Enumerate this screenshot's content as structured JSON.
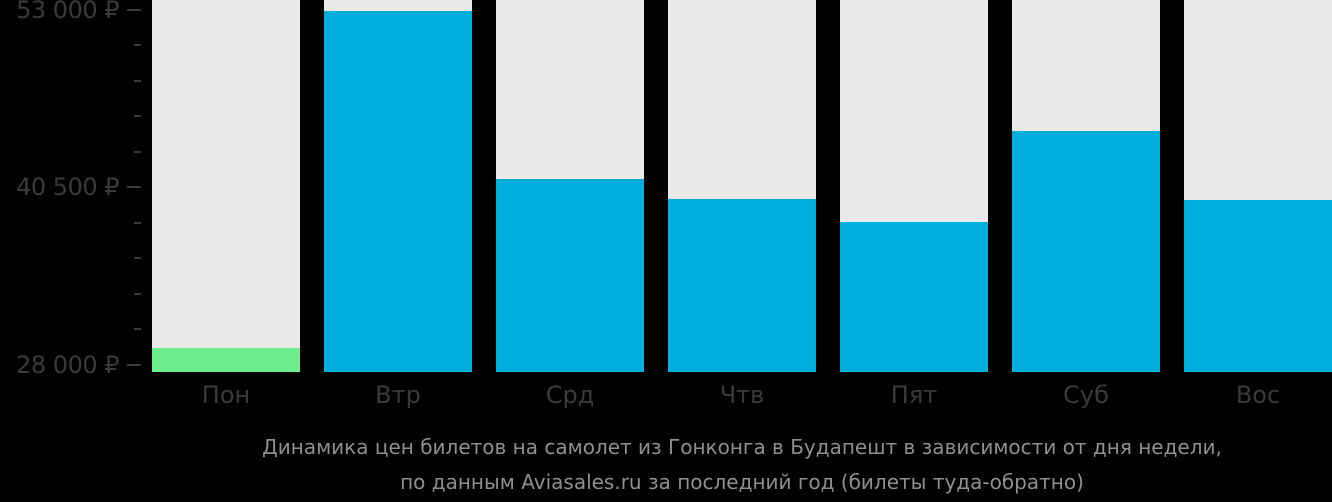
{
  "chart_data": {
    "type": "bar",
    "categories": [
      "Пон",
      "Втр",
      "Срд",
      "Чтв",
      "Пят",
      "Суб",
      "Вос"
    ],
    "values": [
      29200,
      52900,
      41100,
      39700,
      38100,
      44500,
      39600
    ],
    "unit": "₽",
    "highlight_index": 0,
    "grid": false,
    "legend_position": "none",
    "y_axis": {
      "min": 27500,
      "max": 53700,
      "major_ticks": [
        {
          "value": 53000,
          "label": "53 000 ₽"
        },
        {
          "value": 40500,
          "label": "40 500 ₽"
        },
        {
          "value": 28000,
          "label": "28 000 ₽"
        }
      ],
      "minor_tick_step": 2500
    },
    "colors": {
      "bar_default": "#00AEDB",
      "bar_highlight": "#6DEC8B",
      "column_track": "#E9E9E9",
      "axis_text": "#3A3A3A",
      "caption_text": "#8F8F8F",
      "background": "#000000"
    },
    "caption": {
      "line1": "Динамика цен билетов на самолет из Гонконга в Будапешт в зависимости от дня недели,",
      "line2": "по данным Aviasales.ru за последний год (билеты туда-обратно)"
    }
  }
}
